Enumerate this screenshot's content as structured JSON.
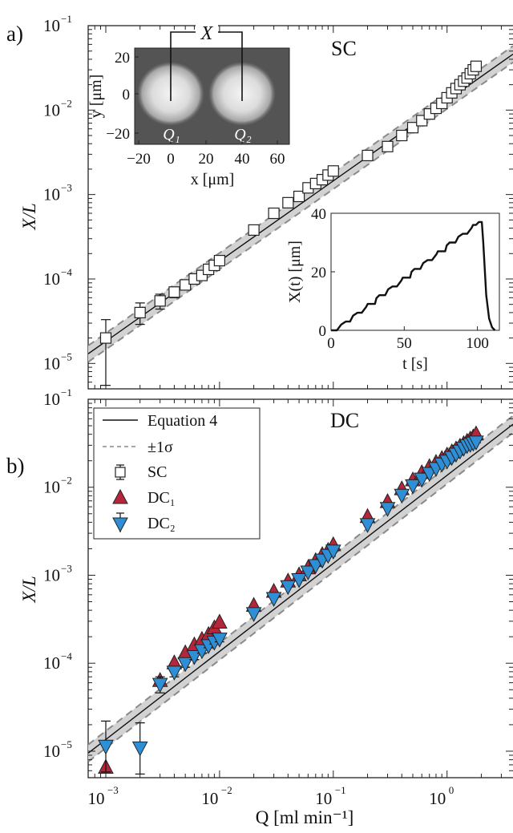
{
  "figure": {
    "panel_a_label": "a)",
    "panel_b_label": "b)",
    "x_axis_label": "Q [ml min⁻¹]",
    "y_axis_label": "X/L"
  },
  "chart_data": [
    {
      "id": "panel-a",
      "type": "scatter",
      "title": "SC",
      "xscale": "log",
      "yscale": "log",
      "xlim": [
        0.0007,
        3.8
      ],
      "ylim": [
        5e-06,
        0.1
      ],
      "ylabel": "X/L",
      "xlabel": "",
      "x_tick_labels": [
        "10^-3",
        "10^-2",
        "10^-1",
        "10^0"
      ],
      "y_tick_labels": [
        "10^-5",
        "10^-4",
        "10^-3",
        "10^-2",
        "10^-1"
      ],
      "fit_line": {
        "name": "Equation 4",
        "points": [
          [
            0.0007,
            1.3e-05
          ],
          [
            3.8,
            0.046
          ]
        ],
        "band_factor": 1.25
      },
      "series": [
        {
          "name": "SC",
          "marker": "square",
          "x": [
            0.001,
            0.002,
            0.003,
            0.004,
            0.005,
            0.006,
            0.007,
            0.008,
            0.009,
            0.01,
            0.02,
            0.03,
            0.04,
            0.05,
            0.06,
            0.07,
            0.08,
            0.09,
            0.1,
            0.2,
            0.3,
            0.4,
            0.5,
            0.6,
            0.7,
            0.8,
            0.9,
            1.0,
            1.1,
            1.2,
            1.3,
            1.4,
            1.5,
            1.6,
            1.7,
            1.8
          ],
          "y": [
            2e-05,
            4e-05,
            5.5e-05,
            7e-05,
            8.5e-05,
            0.0001,
            0.00011,
            0.00013,
            0.000145,
            0.000165,
            0.00038,
            0.0006,
            0.0008,
            0.00095,
            0.0012,
            0.00135,
            0.0015,
            0.0017,
            0.0019,
            0.0029,
            0.0037,
            0.005,
            0.0062,
            0.0075,
            0.009,
            0.0105,
            0.012,
            0.014,
            0.016,
            0.018,
            0.02,
            0.022,
            0.024,
            0.027,
            0.03,
            0.033
          ],
          "err_low": [
            5.5e-06,
            2.9e-05,
            4.4e-05,
            6e-05,
            7.5e-05,
            9e-05,
            0.0001,
            0.00012,
            0.000135,
            0.00015
          ],
          "err_high": [
            3.3e-05,
            5.2e-05,
            6.6e-05,
            8e-05,
            9.5e-05,
            0.00011,
            0.00012,
            0.00014,
            0.000155,
            0.00018
          ]
        }
      ],
      "inset_image": {
        "label_top": "X",
        "label_q1": "Q₁",
        "label_q2": "Q₂",
        "xlabel": "x [μm]",
        "ylabel": "y [μm]",
        "x_ticks": [
          "-20",
          "0",
          "20",
          "40",
          "60"
        ],
        "y_ticks": [
          "20",
          "0",
          "-20"
        ]
      },
      "inset_plot": {
        "type": "line",
        "xlabel": "t [s]",
        "ylabel": "X(t) [μm]",
        "xlim": [
          0,
          115
        ],
        "ylim": [
          0,
          40
        ],
        "x_ticks": [
          "0",
          "50",
          "100"
        ],
        "y_ticks": [
          "0",
          "20",
          "40"
        ],
        "t": [
          0,
          4,
          7,
          10,
          12,
          13,
          15,
          18,
          19,
          21,
          24,
          25,
          27,
          30,
          31,
          33,
          36,
          37,
          39,
          42,
          43,
          45,
          48,
          49,
          51,
          54,
          55,
          57,
          60,
          61,
          63,
          66,
          67,
          69,
          72,
          73,
          75,
          78,
          79,
          81,
          84,
          85,
          87,
          90,
          91,
          93,
          96,
          97,
          99,
          101,
          102,
          103,
          104,
          106,
          108,
          110,
          112
        ],
        "x": [
          0,
          0,
          2,
          3,
          3,
          3,
          5,
          6,
          6,
          6,
          8,
          9,
          9,
          9,
          11,
          12,
          12,
          12,
          14,
          15,
          15,
          15,
          17,
          18,
          18,
          18,
          20,
          21,
          21,
          21,
          23,
          24,
          24,
          24,
          26,
          27,
          27,
          27,
          29,
          30,
          30,
          30,
          32,
          33,
          33,
          33,
          35,
          36,
          36,
          37,
          37,
          37,
          30,
          12,
          4,
          1,
          0
        ]
      }
    },
    {
      "id": "panel-b",
      "type": "scatter",
      "title": "DC",
      "xscale": "log",
      "yscale": "log",
      "xlim": [
        0.0007,
        3.8
      ],
      "ylim": [
        5e-06,
        0.1
      ],
      "xlabel": "Q [ml min⁻¹]",
      "ylabel": "X/L",
      "x_tick_labels": [
        "10^-3",
        "10^-2",
        "10^-1",
        "10^0"
      ],
      "y_tick_labels": [
        "10^-5",
        "10^-4",
        "10^-3",
        "10^-2",
        "10^-1"
      ],
      "fit_line": {
        "name": "Equation 4",
        "points": [
          [
            0.0007,
            9.5e-06
          ],
          [
            3.8,
            0.052
          ]
        ],
        "band_factor": 1.25
      },
      "legend": {
        "position": "top-left",
        "entries": [
          "Equation 4",
          "±1σ",
          "SC",
          "DC₁",
          "DC₂"
        ]
      },
      "series": [
        {
          "name": "DC₁",
          "marker": "triangle-up",
          "color": "#b5263a",
          "x": [
            0.001,
            0.003,
            0.004,
            0.005,
            0.006,
            0.007,
            0.008,
            0.009,
            0.01,
            0.02,
            0.03,
            0.04,
            0.05,
            0.06,
            0.07,
            0.08,
            0.09,
            0.1,
            0.2,
            0.3,
            0.4,
            0.5,
            0.6,
            0.7,
            0.8,
            0.9,
            1.0,
            1.1,
            1.2,
            1.3,
            1.4,
            1.5,
            1.6,
            1.7,
            1.8
          ],
          "y": [
            6.5e-06,
            6.3e-05,
            0.0001,
            0.00013,
            0.00016,
            0.000185,
            0.00021,
            0.00025,
            0.00029,
            0.00045,
            0.00065,
            0.00085,
            0.001,
            0.0012,
            0.00145,
            0.0017,
            0.0019,
            0.0022,
            0.0046,
            0.0068,
            0.0095,
            0.012,
            0.0145,
            0.017,
            0.019,
            0.021,
            0.023,
            0.025,
            0.027,
            0.029,
            0.031,
            0.033,
            0.035,
            0.037,
            0.04
          ]
        },
        {
          "name": "DC₂",
          "marker": "triangle-down",
          "color": "#2f8fd6",
          "x": [
            0.001,
            0.002,
            0.003,
            0.004,
            0.005,
            0.006,
            0.007,
            0.008,
            0.009,
            0.01,
            0.02,
            0.03,
            0.04,
            0.05,
            0.06,
            0.07,
            0.08,
            0.09,
            0.1,
            0.2,
            0.3,
            0.4,
            0.5,
            0.6,
            0.7,
            0.8,
            0.9,
            1.0,
            1.1,
            1.2,
            1.3,
            1.4,
            1.5,
            1.6,
            1.7,
            1.8
          ],
          "y": [
            1.15e-05,
            1.1e-05,
            5.8e-05,
            8e-05,
            0.0001,
            0.00012,
            0.00014,
            0.00016,
            0.000175,
            0.00019,
            0.00037,
            0.00055,
            0.00075,
            0.0009,
            0.0011,
            0.0013,
            0.0015,
            0.0017,
            0.0019,
            0.0038,
            0.0058,
            0.0082,
            0.0105,
            0.0125,
            0.0145,
            0.0165,
            0.0185,
            0.02,
            0.022,
            0.024,
            0.026,
            0.028,
            0.03,
            0.031,
            0.032,
            0.033
          ],
          "err_low": [
            5.8e-06,
            5.5e-06,
            4.6e-05,
            7e-05,
            9e-05,
            0.00011,
            0.00013,
            0.00015,
            0.000165,
            0.000175
          ],
          "err_high": [
            2.2e-05,
            2.1e-05,
            7e-05,
            9e-05,
            0.00011,
            0.00013,
            0.00015,
            0.00017,
            0.000185,
            0.00021
          ]
        }
      ]
    }
  ]
}
